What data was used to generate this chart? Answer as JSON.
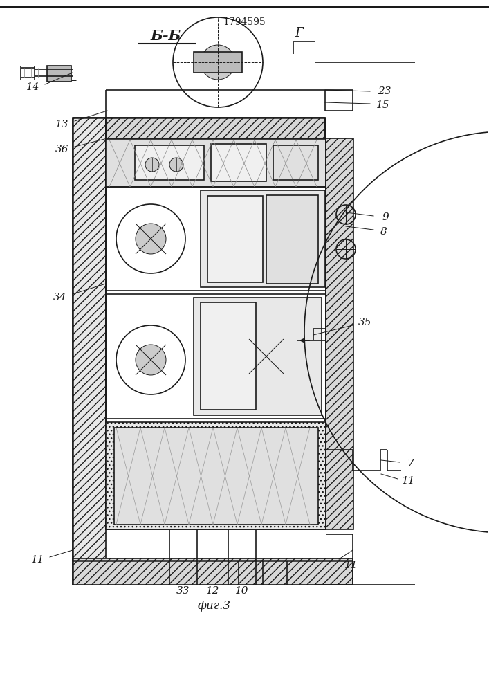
{
  "title_number": "1794595",
  "section_label": "Б-Б",
  "fig_label": "фиг.3",
  "corner_label": "Г",
  "bg_color": "#ffffff",
  "line_color": "#1a1a1a",
  "label_fontsize": 11,
  "title_fontsize": 10,
  "section_fontsize": 15,
  "caption_fontsize": 12
}
